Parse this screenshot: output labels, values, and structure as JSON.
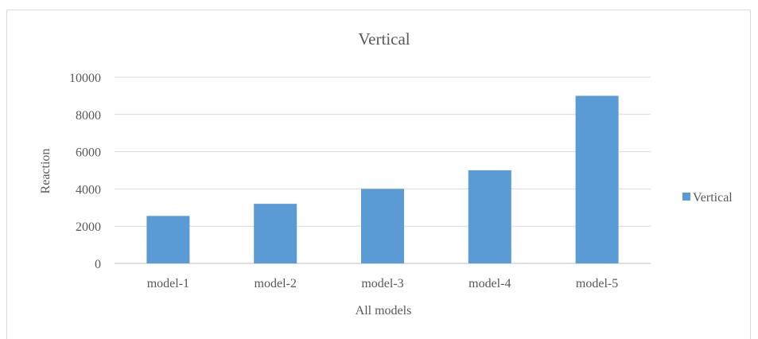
{
  "chart_data": {
    "type": "bar",
    "title": "Vertical",
    "xlabel": "All models",
    "ylabel": "Reaction",
    "categories": [
      "model-1",
      "model-2",
      "model-3",
      "model-4",
      "model-5"
    ],
    "series": [
      {
        "name": "Vertical",
        "color": "#5b9bd5",
        "values": [
          2550,
          3200,
          4000,
          5000,
          9000
        ]
      }
    ],
    "ylim": [
      0,
      10000
    ],
    "yticks": [
      0,
      2000,
      4000,
      6000,
      8000,
      10000
    ],
    "grid": true,
    "legend_position": "right"
  }
}
